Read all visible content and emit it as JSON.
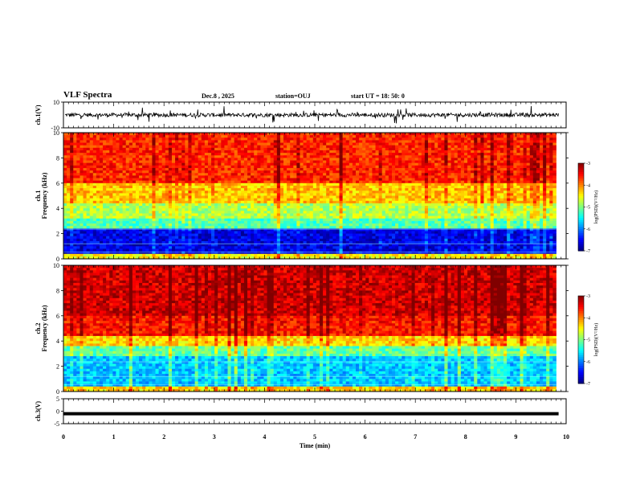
{
  "header": {
    "title": "VLF Spectra",
    "date": "Dec.8  , 2025",
    "station": "station=OUJ",
    "start": "start  UT  =   18: 50: 0"
  },
  "chart_data": [
    {
      "type": "line",
      "name": "ch1-waveform",
      "ylabel": "ch.1(V)",
      "ylim": [
        -10,
        10
      ],
      "yticks": [
        "10",
        "-10"
      ],
      "xlim": [
        0,
        10
      ],
      "baseline": 0
    },
    {
      "type": "heatmap",
      "name": "ch1-spectrogram",
      "ylabel": "ch.1\nFrequency  (kHz)",
      "ylim": [
        0,
        10
      ],
      "yticks": [
        "0",
        "2",
        "4",
        "6",
        "8",
        "10"
      ],
      "xlim": [
        0,
        10
      ],
      "data_end_min": 9.8,
      "colorbar": {
        "label": "log(PSD)(V²/Hz)",
        "range": [
          -7,
          -3
        ],
        "ticks": [
          "-3",
          "-4",
          "-5",
          "-6",
          "-7"
        ]
      }
    },
    {
      "type": "heatmap",
      "name": "ch2-spectrogram",
      "ylabel": "ch.2\nFrequency  (kHz)",
      "ylim": [
        0,
        10
      ],
      "yticks": [
        "0",
        "2",
        "4",
        "6",
        "8",
        "10"
      ],
      "xlim": [
        0,
        10
      ],
      "data_end_min": 9.8,
      "colorbar": {
        "label": "log(PSD)(V²/Hz)",
        "range": [
          -7,
          -3
        ],
        "ticks": [
          "-3",
          "-4",
          "-5",
          "-6",
          "-7"
        ]
      }
    },
    {
      "type": "line",
      "name": "ch3-waveform",
      "ylabel": "ch.3(V)",
      "ylim": [
        -5,
        5
      ],
      "yticks": [
        "5",
        "0",
        "-5"
      ],
      "xlim": [
        0,
        10
      ],
      "baseline": -1
    }
  ],
  "xaxis": {
    "label": "Time  (min)",
    "ticks": [
      "0",
      "1",
      "2",
      "3",
      "4",
      "5",
      "6",
      "7",
      "8",
      "9",
      "10"
    ]
  },
  "colors": {
    "jet": [
      "#000080",
      "#0000ff",
      "#00ffff",
      "#00ff00",
      "#ffff00",
      "#ff0000"
    ]
  }
}
